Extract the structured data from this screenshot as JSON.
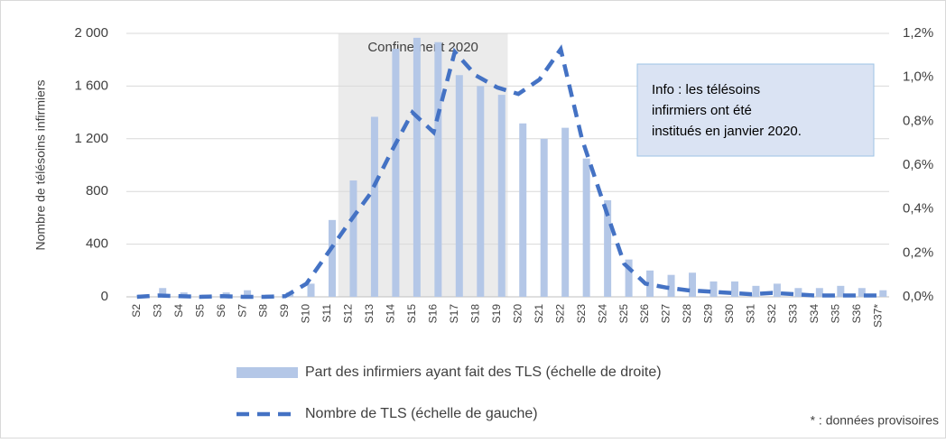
{
  "chart_data": {
    "type": "bar_line",
    "y_label": "Nombre de télésoins infirmiers",
    "categories": [
      "S2",
      "S3",
      "S4",
      "S5",
      "S6",
      "S7",
      "S8",
      "S9",
      "S10",
      "S11",
      "S12",
      "S13",
      "S14",
      "S15",
      "S16",
      "S17",
      "S18",
      "S19",
      "S20",
      "S21",
      "S22",
      "S23",
      "S24",
      "S25",
      "S26",
      "S27",
      "S28",
      "S29",
      "S30",
      "S31",
      "S32",
      "S33",
      "S34",
      "S35",
      "S36",
      "S37*"
    ],
    "series": [
      {
        "name": "Part des infirmiers ayant fait des TLS (échelle de droite)",
        "type": "bar",
        "axis": "y2",
        "color": "#b4c7e7",
        "values": [
          0.01,
          0.04,
          0.02,
          0.01,
          0.02,
          0.03,
          0.01,
          0.02,
          0.06,
          0.35,
          0.53,
          0.82,
          1.13,
          1.18,
          1.16,
          1.01,
          0.96,
          0.92,
          0.79,
          0.72,
          0.77,
          0.63,
          0.44,
          0.17,
          0.12,
          0.1,
          0.11,
          0.07,
          0.07,
          0.05,
          0.06,
          0.04,
          0.04,
          0.05,
          0.04,
          0.03
        ]
      },
      {
        "name": "Nombre de TLS (échelle de gauche)",
        "type": "line",
        "axis": "y",
        "color": "#4472c4",
        "values": [
          0,
          10,
          5,
          0,
          5,
          0,
          0,
          5,
          100,
          330,
          560,
          780,
          1100,
          1400,
          1250,
          1860,
          1680,
          1590,
          1540,
          1650,
          1880,
          1200,
          720,
          250,
          100,
          70,
          50,
          40,
          30,
          20,
          30,
          20,
          10,
          10,
          10,
          10
        ]
      }
    ],
    "ylim": [
      0,
      2000
    ],
    "yticks": [
      0,
      400,
      800,
      {
        "value": 1200,
        "label": "1 200"
      },
      {
        "value": 1600,
        "label": "1 600"
      },
      {
        "value": 2000,
        "label": "2 000"
      }
    ],
    "y2lim": [
      0,
      1.2
    ],
    "y2ticks": [
      {
        "value": 0,
        "label": "0,0%"
      },
      {
        "value": 0.2,
        "label": "0,2%"
      },
      {
        "value": 0.4,
        "label": "0,4%"
      },
      {
        "value": 0.6,
        "label": "0,6%"
      },
      {
        "value": 0.8,
        "label": "0,8%"
      },
      {
        "value": 1.0,
        "label": "1,0%"
      },
      {
        "value": 1.2,
        "label": "1,2%"
      }
    ],
    "grid": true,
    "shaded": {
      "label": "Confinement 2020",
      "from": "S12",
      "to": "S19"
    },
    "info": [
      "Info : les télésoins",
      "infirmiers ont été",
      "institués en janvier 2020."
    ],
    "footnote": "* : données provisoires"
  }
}
